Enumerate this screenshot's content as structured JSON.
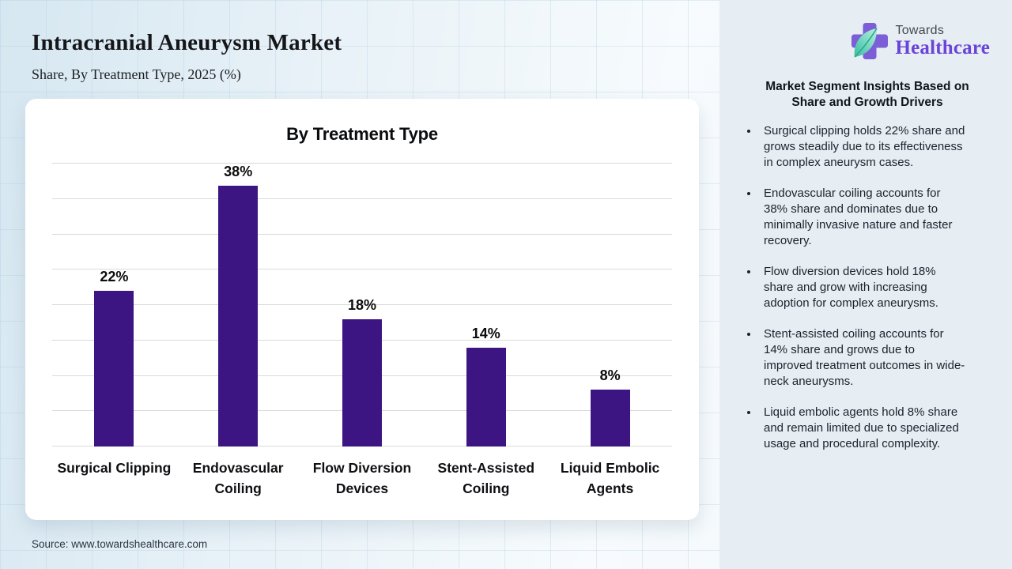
{
  "header": {
    "title": "Intracranial Aneurysm Market",
    "subtitle": "Share, By Treatment Type, 2025 (%)"
  },
  "logo": {
    "top": "Towards",
    "bottom": "Healthcare",
    "cross_color": "#7c5ed6",
    "leaf_color": "#41c9a9",
    "wordmark_color": "#6a43d8"
  },
  "chart_data": {
    "type": "bar",
    "title": "By Treatment Type",
    "categories": [
      "Surgical Clipping",
      "Endovascular Coiling",
      "Flow Diversion Devices",
      "Stent-Assisted Coiling",
      "Liquid Embolic Agents"
    ],
    "values": [
      22,
      38,
      18,
      14,
      8
    ],
    "value_labels": [
      "22%",
      "38%",
      "18%",
      "14%",
      "8%"
    ],
    "xlabel": "",
    "ylabel": "",
    "ylim": [
      0,
      40
    ],
    "gridline_step": 5,
    "grid": true,
    "legend": false,
    "bar_color": "#3d1583"
  },
  "sidebar": {
    "heading": "Market Segment Insights Based on Share and Growth Drivers",
    "bullets": [
      "Surgical clipping holds 22% share and grows steadily due to its effectiveness in complex aneurysm cases.",
      "Endovascular coiling accounts for 38% share and dominates due to minimally invasive nature and faster recovery.",
      "Flow diversion devices hold 18% share and grow with increasing adoption for complex aneurysms.",
      "Stent-assisted coiling accounts for 14% share and grows due to improved treatment outcomes in wide-neck aneurysms.",
      "Liquid embolic agents hold 8% share and remain limited due to specialized usage and procedural complexity."
    ],
    "panel_color": "#e6edf3"
  },
  "footer": {
    "source": "Source: www.towardshealthcare.com"
  }
}
